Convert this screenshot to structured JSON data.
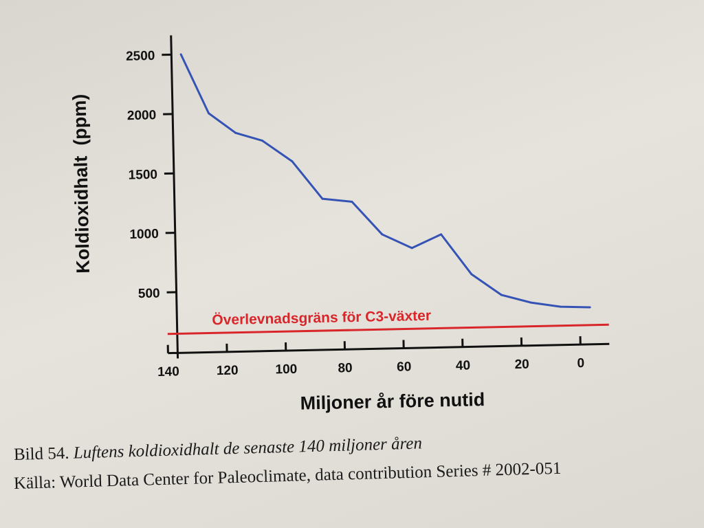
{
  "chart_data": {
    "type": "line",
    "title": "",
    "xlabel": "Miljoner år före nutid",
    "ylabel": "Koldioxidhalt  (ppm)",
    "x_ticks": [
      140,
      120,
      100,
      80,
      60,
      40,
      20,
      0
    ],
    "y_ticks": [
      500,
      1000,
      1500,
      2000,
      2500
    ],
    "x_reversed": true,
    "xlim": [
      140,
      0
    ],
    "ylim": [
      0,
      2500
    ],
    "grid": false,
    "series": [
      {
        "color": "#3453b4",
        "x": [
          137,
          128,
          119,
          110,
          100,
          90,
          80,
          70,
          60,
          50,
          40,
          30,
          20,
          10,
          0
        ],
        "y": [
          2500,
          2000,
          1830,
          1760,
          1580,
          1260,
          1230,
          950,
          830,
          940,
          600,
          420,
          350,
          310,
          300
        ]
      }
    ],
    "reference_line": {
      "label": "Överlevnadsgräns för C3-växter",
      "y": 150,
      "color": "#d8262b"
    }
  },
  "caption": {
    "label": "Bild 54.",
    "title": "Luftens koldioxidhalt de senaste 140 miljoner åren",
    "source": "Källa: World Data Center for Paleoclimate, data contribution Series # 2002-051"
  }
}
